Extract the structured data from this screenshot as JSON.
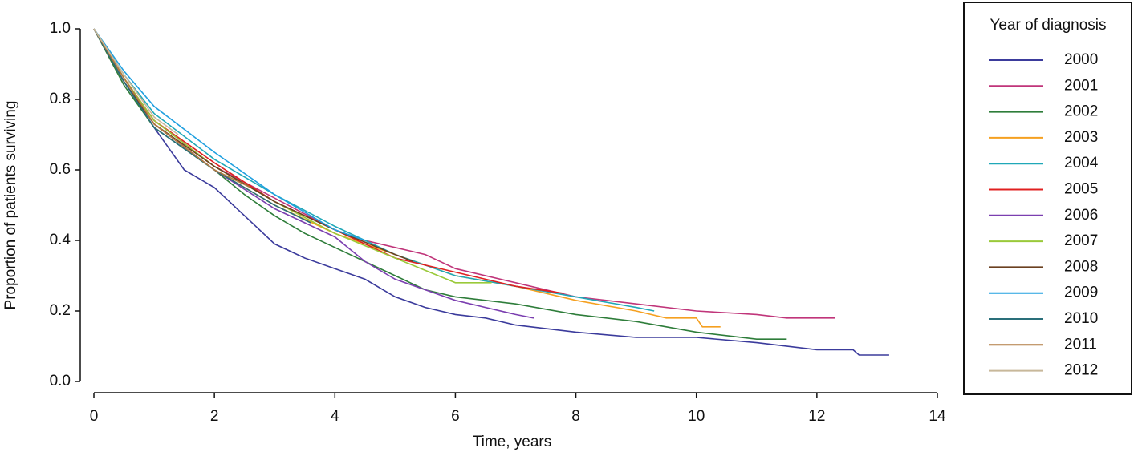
{
  "chart_data": {
    "type": "line",
    "x_label": "Time, years",
    "y_label": "Proportion of patients surviving",
    "legend_title": "Year of diagnosis",
    "legend_position": "right",
    "xlim": [
      0,
      14
    ],
    "xticks": [
      0,
      2,
      4,
      6,
      8,
      10,
      12,
      14
    ],
    "ylim": [
      0,
      1
    ],
    "yticks": [
      {
        "value": 0,
        "label": "0.0"
      },
      0.2,
      0.4,
      0.6,
      0.8,
      {
        "value": 1,
        "label": "1.0"
      }
    ],
    "series": [
      {
        "name": "2000",
        "color": "#3b3b9c",
        "x": [
          0,
          0.5,
          1,
          1.5,
          2,
          2.5,
          3,
          3.5,
          4,
          4.5,
          5,
          5.5,
          6,
          6.5,
          7,
          8,
          9,
          10,
          11,
          12,
          12.6,
          12.7,
          13.2
        ],
        "values": [
          1,
          0.85,
          0.72,
          0.6,
          0.55,
          0.47,
          0.39,
          0.35,
          0.32,
          0.29,
          0.24,
          0.21,
          0.19,
          0.18,
          0.16,
          0.14,
          0.125,
          0.125,
          0.11,
          0.09,
          0.09,
          0.075,
          0.075
        ]
      },
      {
        "name": "2001",
        "color": "#c0357a",
        "x": [
          0,
          0.5,
          1,
          2,
          3,
          4,
          4.5,
          5,
          5.5,
          6,
          7,
          8,
          9,
          10,
          11,
          11.5,
          12.3
        ],
        "values": [
          1,
          0.86,
          0.74,
          0.61,
          0.52,
          0.43,
          0.4,
          0.38,
          0.36,
          0.32,
          0.28,
          0.24,
          0.22,
          0.2,
          0.19,
          0.18,
          0.18
        ]
      },
      {
        "name": "2002",
        "color": "#2e7d3a",
        "x": [
          0,
          0.5,
          1,
          2,
          2.5,
          3,
          3.5,
          4,
          5,
          5.5,
          6,
          7,
          8,
          9,
          10,
          11,
          11.5
        ],
        "values": [
          1,
          0.84,
          0.72,
          0.6,
          0.53,
          0.47,
          0.42,
          0.38,
          0.3,
          0.26,
          0.24,
          0.22,
          0.19,
          0.17,
          0.14,
          0.12,
          0.12
        ]
      },
      {
        "name": "2003",
        "color": "#f5a020",
        "x": [
          0,
          0.5,
          1,
          2,
          3,
          4,
          5,
          6,
          7,
          8,
          9,
          9.5,
          10,
          10.1,
          10.4
        ],
        "values": [
          1,
          0.86,
          0.73,
          0.6,
          0.5,
          0.42,
          0.36,
          0.3,
          0.27,
          0.23,
          0.2,
          0.18,
          0.18,
          0.155,
          0.155
        ]
      },
      {
        "name": "2004",
        "color": "#20a8b8",
        "x": [
          0,
          0.5,
          1,
          2,
          3,
          4,
          5,
          6,
          7,
          8,
          9,
          9.3
        ],
        "values": [
          1,
          0.87,
          0.76,
          0.63,
          0.53,
          0.44,
          0.36,
          0.3,
          0.27,
          0.24,
          0.21,
          0.2
        ]
      },
      {
        "name": "2005",
        "color": "#e02020",
        "x": [
          0,
          0.5,
          1,
          2,
          3,
          4,
          5,
          6,
          7,
          7.8
        ],
        "values": [
          1,
          0.86,
          0.74,
          0.62,
          0.51,
          0.43,
          0.35,
          0.31,
          0.27,
          0.25
        ]
      },
      {
        "name": "2006",
        "color": "#7b3fb0",
        "x": [
          0,
          0.5,
          1,
          2,
          3,
          4,
          4.5,
          5,
          5.5,
          6,
          6.5,
          7,
          7.3
        ],
        "values": [
          1,
          0.85,
          0.73,
          0.6,
          0.49,
          0.41,
          0.34,
          0.29,
          0.26,
          0.23,
          0.21,
          0.19,
          0.18
        ]
      },
      {
        "name": "2007",
        "color": "#9ac93a",
        "x": [
          0,
          0.5,
          1,
          2,
          3,
          4,
          5,
          6,
          6.6
        ],
        "values": [
          1,
          0.86,
          0.74,
          0.61,
          0.51,
          0.42,
          0.35,
          0.28,
          0.28
        ]
      },
      {
        "name": "2008",
        "color": "#6b4020",
        "x": [
          0,
          0.5,
          1,
          2,
          3,
          4,
          5,
          5.3
        ],
        "values": [
          1,
          0.85,
          0.73,
          0.61,
          0.51,
          0.43,
          0.36,
          0.34
        ]
      },
      {
        "name": "2009",
        "color": "#20a0e0",
        "x": [
          0,
          0.5,
          1,
          2,
          3,
          4,
          4.5
        ],
        "values": [
          1,
          0.88,
          0.78,
          0.65,
          0.53,
          0.43,
          0.4
        ]
      },
      {
        "name": "2010",
        "color": "#2a6f7a",
        "x": [
          0,
          0.5,
          1,
          2,
          3,
          3.6
        ],
        "values": [
          1,
          0.85,
          0.72,
          0.6,
          0.5,
          0.45
        ]
      },
      {
        "name": "2011",
        "color": "#b07a40",
        "x": [
          0,
          0.5,
          1,
          2,
          2.6
        ],
        "values": [
          1,
          0.86,
          0.73,
          0.6,
          0.55
        ]
      },
      {
        "name": "2012",
        "color": "#c8b89a",
        "x": [
          0,
          0.5,
          1,
          1.4
        ],
        "values": [
          1,
          0.87,
          0.75,
          0.7
        ]
      }
    ]
  }
}
